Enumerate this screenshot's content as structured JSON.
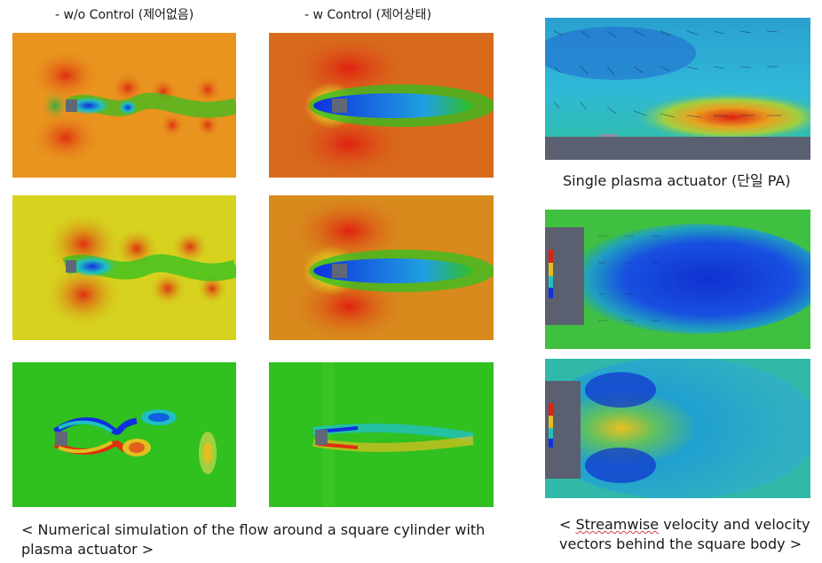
{
  "left": {
    "col1_label": "- w/o Control (제어없음)",
    "col2_label": "- w Control (제어상태)",
    "caption_line1": "< Numerical simulation of the flow around a square cylinder with",
    "caption_line2": "plasma actuator >"
  },
  "right": {
    "top_label": "Single plasma actuator (단일 PA)",
    "caption_prefix": "< ",
    "caption_underlined": "Streamwise",
    "caption_rest": " velocity and velocity",
    "caption_line2": "vectors behind the square body >"
  },
  "colors": {
    "red": "#e03010",
    "orange": "#e88a20",
    "yellow": "#d8d820",
    "green": "#30c020",
    "cyan": "#20c0c0",
    "blue": "#1030e0",
    "body": "#606878"
  }
}
